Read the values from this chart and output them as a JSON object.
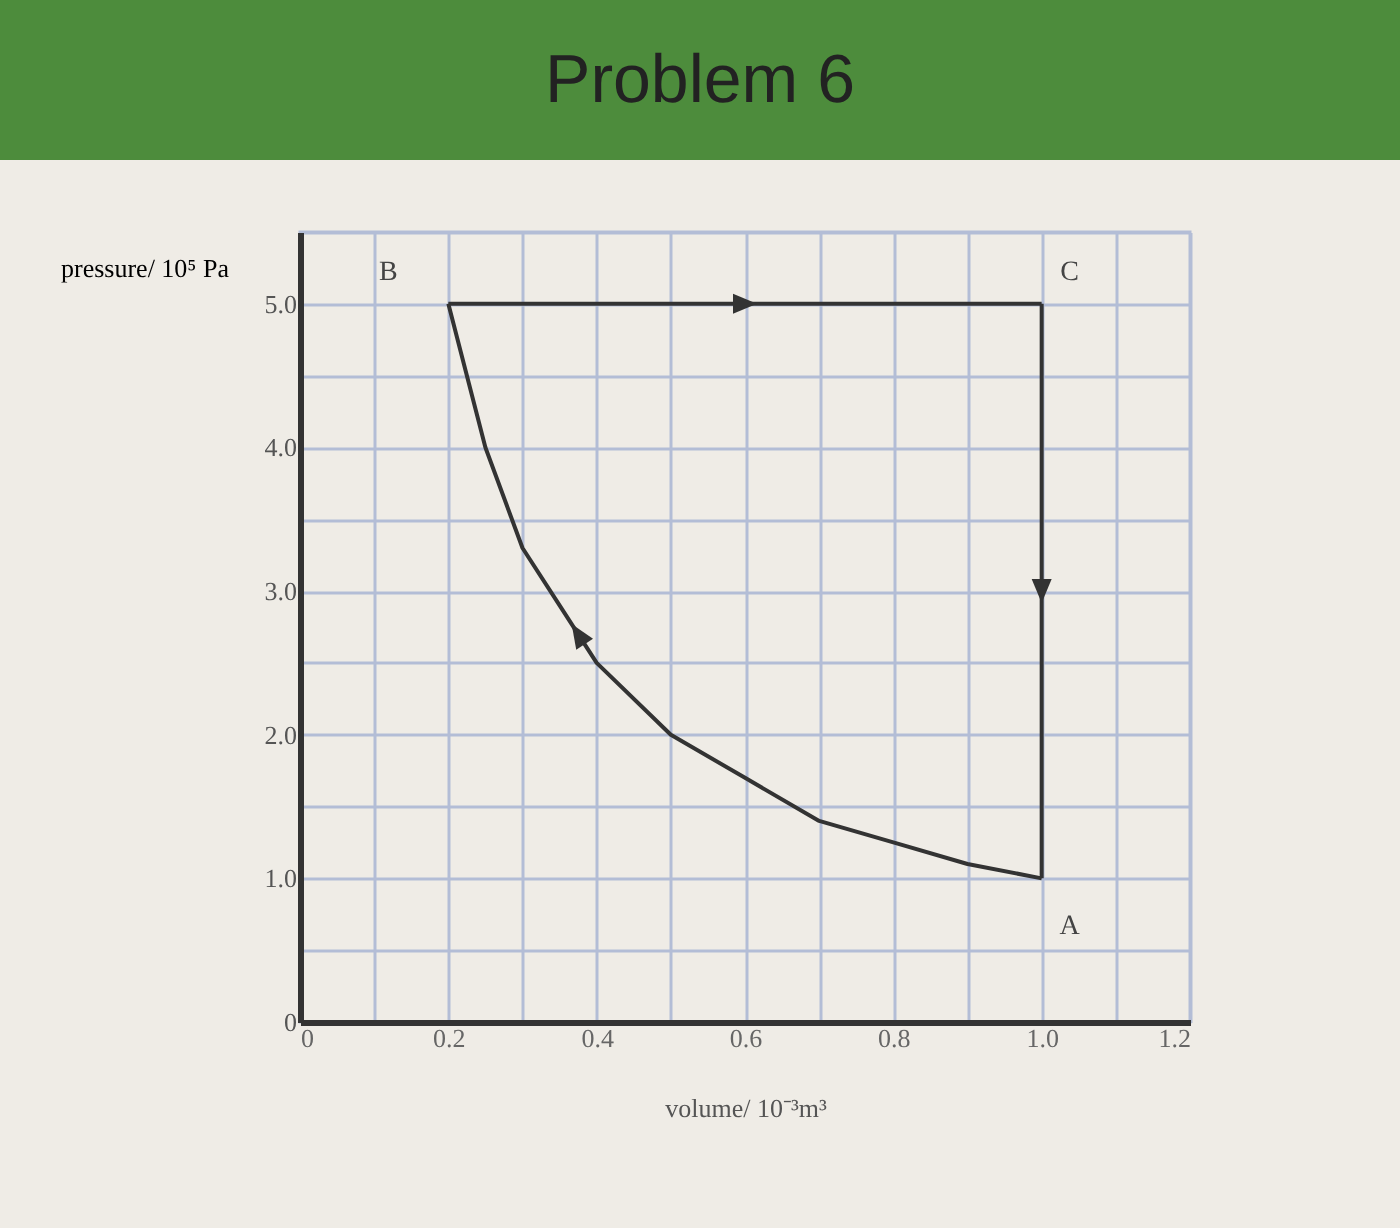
{
  "chart_data": {
    "type": "line",
    "title": "Problem 6",
    "xlabel": "volume/ 10⁻³m³",
    "ylabel": "pressure/ 10⁵ Pa",
    "series": [
      {
        "color": "#333333",
        "x": [
          0.2,
          1.0
        ],
        "values": [
          5.0,
          5.0
        ]
      },
      {
        "color": "#333333",
        "x": [
          1.0,
          1.0
        ],
        "values": [
          5.0,
          1.0
        ]
      },
      {
        "color": "#333333",
        "x": [
          1.0,
          0.9,
          0.8,
          0.7,
          0.6,
          0.5,
          0.4,
          0.35,
          0.3,
          0.25,
          0.2
        ],
        "values": [
          1.0,
          1.1,
          1.25,
          1.4,
          1.7,
          2.0,
          2.5,
          2.9,
          3.3,
          4.0,
          5.0
        ]
      }
    ],
    "xlim": [
      0,
      1.2
    ],
    "ylim": [
      0,
      5.5
    ],
    "xticks": [
      0,
      {
        "value": 0.1,
        "label": null
      },
      0.2,
      {
        "value": 0.3,
        "label": null
      },
      0.4,
      {
        "value": 0.5,
        "label": null
      },
      0.6,
      {
        "value": 0.7,
        "label": null
      },
      0.8,
      {
        "value": 0.9,
        "label": null
      },
      {
        "value": 1,
        "label": "1.0"
      },
      {
        "value": 1.1,
        "label": null
      },
      1.2
    ],
    "yticks": [
      0,
      {
        "value": 0.5,
        "label": null
      },
      {
        "value": 1,
        "label": "1.0"
      },
      {
        "value": 1.5,
        "label": null
      },
      {
        "value": 2,
        "label": "2.0"
      },
      {
        "value": 2.5,
        "label": null
      },
      {
        "value": 3,
        "label": "3.0"
      },
      {
        "value": 3.5,
        "label": null
      },
      {
        "value": 4,
        "label": "4.0"
      },
      {
        "value": 4.5,
        "label": null
      },
      {
        "value": 5,
        "label": "5.0"
      },
      {
        "value": 5.5,
        "label": null
      }
    ],
    "grid": true,
    "marker": "none",
    "line_style": "solid",
    "annotations": [
      "B",
      "C",
      "A"
    ]
  }
}
